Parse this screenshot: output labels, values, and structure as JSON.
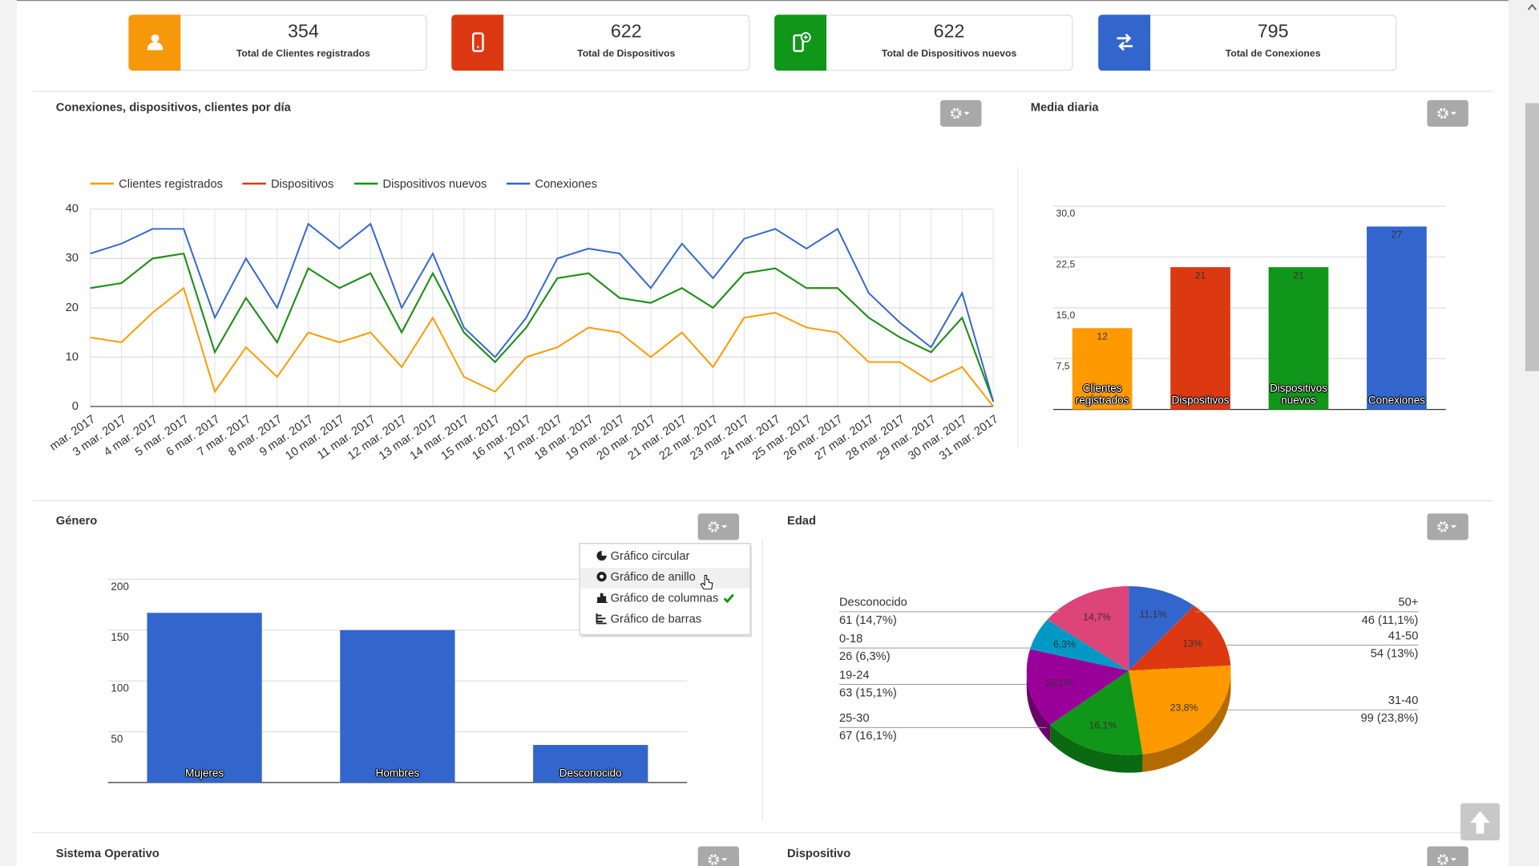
{
  "cards": [
    {
      "value": 354,
      "label": "Total de Clientes registrados",
      "color": "#f7980b"
    },
    {
      "value": 622,
      "label": "Total de Dispositivos",
      "color": "#dc3912"
    },
    {
      "value": 622,
      "label": "Total de Dispositivos nuevos",
      "color": "#109618"
    },
    {
      "value": 795,
      "label": "Total de Conexiones",
      "color": "#3366cc"
    }
  ],
  "chart_data": [
    {
      "type": "line",
      "title": "Conexiones, dispositivos, clientes por día",
      "categories": [
        "mar. 2017",
        "3 mar. 2017",
        "4 mar. 2017",
        "5 mar. 2017",
        "6 mar. 2017",
        "7 mar. 2017",
        "8 mar. 2017",
        "9 mar. 2017",
        "10 mar. 2017",
        "11 mar. 2017",
        "12 mar. 2017",
        "13 mar. 2017",
        "14 mar. 2017",
        "15 mar. 2017",
        "16 mar. 2017",
        "17 mar. 2017",
        "18 mar. 2017",
        "19 mar. 2017",
        "20 mar. 2017",
        "21 mar. 2017",
        "22 mar. 2017",
        "23 mar. 2017",
        "24 mar. 2017",
        "25 mar. 2017",
        "26 mar. 2017",
        "27 mar. 2017",
        "28 mar. 2017",
        "29 mar. 2017",
        "30 mar. 2017",
        "31 mar. 2017"
      ],
      "series": [
        {
          "name": "Clientes registrados",
          "color": "#ff9900",
          "values": [
            14,
            13,
            19,
            24,
            3,
            12,
            6,
            15,
            13,
            15,
            8,
            18,
            6,
            3,
            10,
            12,
            16,
            15,
            10,
            15,
            8,
            18,
            19,
            16,
            15,
            9,
            9,
            5,
            8,
            0
          ]
        },
        {
          "name": "Dispositivos",
          "color": "#dc3912",
          "values": [
            24,
            25,
            30,
            31,
            11,
            22,
            13,
            28,
            24,
            27,
            15,
            27,
            15,
            9,
            16,
            26,
            27,
            22,
            21,
            24,
            20,
            27,
            28,
            24,
            24,
            18,
            14,
            11,
            18,
            1
          ]
        },
        {
          "name": "Dispositivos nuevos",
          "color": "#109618",
          "values": [
            24,
            25,
            30,
            31,
            11,
            22,
            13,
            28,
            24,
            27,
            15,
            27,
            15,
            9,
            16,
            26,
            27,
            22,
            21,
            24,
            20,
            27,
            28,
            24,
            24,
            18,
            14,
            11,
            18,
            1
          ]
        },
        {
          "name": "Conexiones",
          "color": "#3366cc",
          "values": [
            31,
            33,
            36,
            36,
            18,
            30,
            20,
            37,
            32,
            37,
            20,
            31,
            16,
            10,
            18,
            30,
            32,
            31,
            24,
            33,
            26,
            34,
            36,
            32,
            36,
            23,
            17,
            12,
            23,
            1
          ]
        }
      ],
      "ylim": [
        0,
        40
      ],
      "yticks": [
        0,
        10,
        20,
        30,
        40
      ],
      "grid": true,
      "legend": "top"
    },
    {
      "type": "bar",
      "title": "Media diaria",
      "categories": [
        "Clientes registrados",
        "Dispositivos",
        "Dispositivos nuevos",
        "Conexiones"
      ],
      "values": [
        12,
        21,
        21,
        27
      ],
      "colors": [
        "#ff9900",
        "#dc3912",
        "#109618",
        "#3366cc"
      ],
      "ylim": [
        0,
        30
      ],
      "yticks": [
        {
          "value": 7.5,
          "label": "7,5"
        },
        {
          "value": 15,
          "label": "15,0"
        },
        {
          "value": 22.5,
          "label": "22,5"
        },
        {
          "value": 30,
          "label": "30,0"
        }
      ],
      "grid": true
    },
    {
      "type": "bar",
      "title": "Género",
      "categories": [
        "Mujeres",
        "Hombres",
        "Desconocido"
      ],
      "values": [
        167,
        150,
        37
      ],
      "color": "#3366cc",
      "ylim": [
        0,
        200
      ],
      "yticks": [
        50,
        100,
        150,
        200
      ],
      "grid": true
    },
    {
      "type": "pie",
      "title": "Edad",
      "categories": [
        "50+",
        "41-50",
        "31-40",
        "25-30",
        "19-24",
        "0-18",
        "Desconocido"
      ],
      "values": [
        46,
        54,
        99,
        67,
        63,
        26,
        61
      ],
      "value_labels": [
        "46 (11,1%)",
        "54 (13%)",
        "99 (23,8%)",
        "67 (16,1%)",
        "63 (15,1%)",
        "26 (6,3%)",
        "61 (14,7%)"
      ],
      "percent_labels": [
        "11,1%",
        "13%",
        "23,8%",
        "16,1%",
        "15,1%",
        "6,3%",
        "14,7%"
      ],
      "colors": [
        "#3366cc",
        "#dc3912",
        "#ff9900",
        "#109618",
        "#990099",
        "#0099c6",
        "#dd4477"
      ],
      "is3d": true
    }
  ],
  "menu": {
    "items": [
      "Gráfico circular",
      "Gráfico de anillo",
      "Gráfico de columnas",
      "Gráfico de barras"
    ],
    "checked": 2,
    "hovered": 1
  },
  "sections": [
    "Sistema Operativo",
    "Dispositivo"
  ]
}
